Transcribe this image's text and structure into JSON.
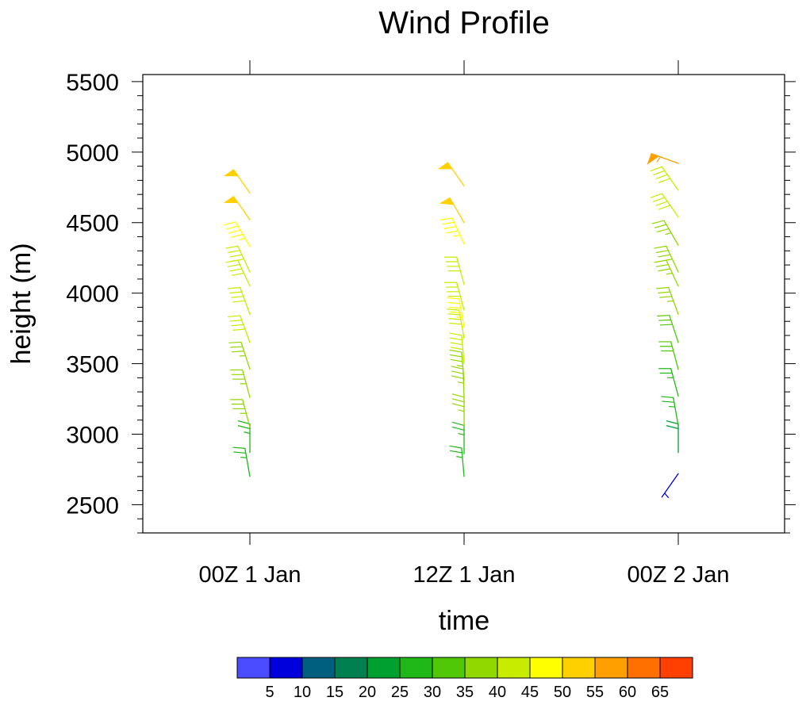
{
  "chart_data": {
    "type": "wind_barb",
    "title": "Wind Profile",
    "xlabel": "time",
    "ylabel": "height (m)",
    "x_ticks": [
      "00Z 1 Jan",
      "12Z 1 Jan",
      "00Z 2 Jan"
    ],
    "y_ticks": [
      2500,
      3000,
      3500,
      4000,
      4500,
      5000,
      5500
    ],
    "ylim": [
      2300,
      5550
    ],
    "colorbar": {
      "labels": [
        "5",
        "10",
        "15",
        "20",
        "25",
        "30",
        "35",
        "40",
        "45",
        "50",
        "55",
        "60",
        "65"
      ],
      "colors": [
        "#4b4bff",
        "#0000dd",
        "#005f7f",
        "#008050",
        "#00a030",
        "#20b818",
        "#50c808",
        "#90d800",
        "#c8ec00",
        "#ffff00",
        "#ffd000",
        "#ffa000",
        "#ff7000",
        "#ff4000"
      ]
    },
    "series": [
      {
        "time": "00Z 1 Jan",
        "barbs": [
          {
            "height": 2700,
            "speed": 28,
            "dir": 190
          },
          {
            "height": 2870,
            "speed": 27,
            "dir": 180
          },
          {
            "height": 3050,
            "speed": 36,
            "dir": 195
          },
          {
            "height": 3260,
            "speed": 37,
            "dir": 195
          },
          {
            "height": 3460,
            "speed": 39,
            "dir": 198
          },
          {
            "height": 3650,
            "speed": 40,
            "dir": 200
          },
          {
            "height": 3850,
            "speed": 41,
            "dir": 200
          },
          {
            "height": 4050,
            "speed": 42,
            "dir": 205
          },
          {
            "height": 4150,
            "speed": 43,
            "dir": 205
          },
          {
            "height": 4330,
            "speed": 45,
            "dir": 210
          },
          {
            "height": 4520,
            "speed": 50,
            "dir": 215
          },
          {
            "height": 4710,
            "speed": 52,
            "dir": 215
          }
        ]
      },
      {
        "time": "12Z 1 Jan",
        "barbs": [
          {
            "height": 2700,
            "speed": 29,
            "dir": 185
          },
          {
            "height": 2860,
            "speed": 28,
            "dir": 180
          },
          {
            "height": 3060,
            "speed": 37,
            "dir": 180
          },
          {
            "height": 3260,
            "speed": 38,
            "dir": 182
          },
          {
            "height": 3380,
            "speed": 39,
            "dir": 185
          },
          {
            "height": 3500,
            "speed": 40,
            "dir": 185
          },
          {
            "height": 3680,
            "speed": 41,
            "dir": 190
          },
          {
            "height": 3760,
            "speed": 45,
            "dir": 190
          },
          {
            "height": 3880,
            "speed": 42,
            "dir": 195
          },
          {
            "height": 4060,
            "speed": 43,
            "dir": 195
          },
          {
            "height": 4350,
            "speed": 48,
            "dir": 205
          },
          {
            "height": 4500,
            "speed": 50,
            "dir": 210
          },
          {
            "height": 4760,
            "speed": 52,
            "dir": 215
          }
        ]
      },
      {
        "time": "00Z 2 Jan",
        "barbs": [
          {
            "height": 2720,
            "speed": 7,
            "dir": 325
          },
          {
            "height": 2870,
            "speed": 24,
            "dir": 180
          },
          {
            "height": 3060,
            "speed": 27,
            "dir": 190
          },
          {
            "height": 3270,
            "speed": 28,
            "dir": 195
          },
          {
            "height": 3460,
            "speed": 30,
            "dir": 195
          },
          {
            "height": 3650,
            "speed": 33,
            "dir": 198
          },
          {
            "height": 3850,
            "speed": 35,
            "dir": 200
          },
          {
            "height": 4050,
            "speed": 36,
            "dir": 205
          },
          {
            "height": 4150,
            "speed": 37,
            "dir": 205
          },
          {
            "height": 4340,
            "speed": 39,
            "dir": 210
          },
          {
            "height": 4540,
            "speed": 40,
            "dir": 215
          },
          {
            "height": 4730,
            "speed": 42,
            "dir": 215
          },
          {
            "height": 4920,
            "speed": 57,
            "dir": 250
          }
        ]
      }
    ]
  }
}
